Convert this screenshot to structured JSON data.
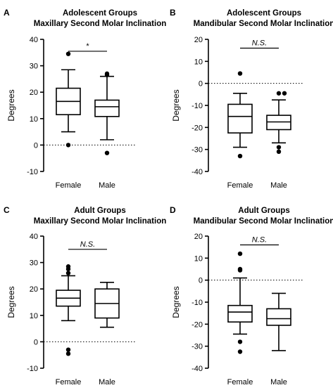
{
  "chart_data": [
    {
      "type": "box",
      "letter": "A",
      "title": "Adolescent Groups",
      "subtitle": "Maxillary Second Molar Inclination",
      "ylabel": "Degrees",
      "ylim": [
        -10,
        40
      ],
      "yticks": [
        -10,
        0,
        10,
        20,
        30,
        40
      ],
      "reference_line": 0,
      "categories": [
        "Female",
        "Male"
      ],
      "boxes": [
        {
          "whisker_low": 5,
          "q1": 11.5,
          "median": 16.5,
          "q3": 21.5,
          "whisker_high": 28.5,
          "outliers": [
            0,
            34.5
          ]
        },
        {
          "whisker_low": 2,
          "q1": 10.8,
          "median": 14.5,
          "q3": 17,
          "whisker_high": 26,
          "outliers": [
            -3,
            26.5,
            27
          ]
        }
      ],
      "significance": {
        "label": "*",
        "level": 35.5
      }
    },
    {
      "type": "box",
      "letter": "B",
      "title": "Adolescent Groups",
      "subtitle": "Mandibular Second Molar Inclination",
      "ylabel": "Degrees",
      "ylim": [
        -40,
        20
      ],
      "yticks": [
        -40,
        -30,
        -20,
        -10,
        0,
        10,
        20
      ],
      "reference_line": 0,
      "categories": [
        "Female",
        "Male"
      ],
      "boxes": [
        {
          "whisker_low": -29,
          "q1": -22.5,
          "median": -15,
          "q3": -9.5,
          "whisker_high": -4.5,
          "outliers": [
            -33,
            4.5
          ]
        },
        {
          "whisker_low": -27,
          "q1": -21,
          "median": -17.5,
          "q3": -14.5,
          "whisker_high": -7.5,
          "outliers": [
            -29,
            -31,
            -4.5,
            -4.5
          ]
        }
      ],
      "significance": {
        "label": "N.S.",
        "level": 16
      }
    },
    {
      "type": "box",
      "letter": "C",
      "title": "Adult Groups",
      "subtitle": "Maxillary Second Molar Inclination",
      "ylabel": "Degrees",
      "ylim": [
        -10,
        40
      ],
      "yticks": [
        -10,
        0,
        10,
        20,
        30,
        40
      ],
      "reference_line": 0,
      "categories": [
        "Female",
        "Male"
      ],
      "boxes": [
        {
          "whisker_low": 8,
          "q1": 13.5,
          "median": 16.5,
          "q3": 19.5,
          "whisker_high": 25,
          "outliers": [
            -3,
            -4.5,
            26,
            27.5,
            28.5
          ]
        },
        {
          "whisker_low": 5.5,
          "q1": 9,
          "median": 14.5,
          "q3": 20,
          "whisker_high": 22.5,
          "outliers": []
        }
      ],
      "significance": {
        "label": "N.S.",
        "level": 35
      }
    },
    {
      "type": "box",
      "letter": "D",
      "title": "Adult Groups",
      "subtitle": "Mandibular Second Molar Inclination",
      "ylabel": "Degrees",
      "ylim": [
        -40,
        20
      ],
      "yticks": [
        -40,
        -30,
        -20,
        -10,
        0,
        10,
        20
      ],
      "reference_line": 0,
      "categories": [
        "Female",
        "Male"
      ],
      "boxes": [
        {
          "whisker_low": -24.5,
          "q1": -19,
          "median": -14.5,
          "q3": -11.5,
          "whisker_high": 1,
          "outliers": [
            -28,
            -32.5,
            4.5,
            5,
            12
          ]
        },
        {
          "whisker_low": -32,
          "q1": -20.5,
          "median": -17.5,
          "q3": -13,
          "whisker_high": -6,
          "outliers": []
        }
      ],
      "significance": {
        "label": "N.S.",
        "level": 16
      }
    }
  ]
}
